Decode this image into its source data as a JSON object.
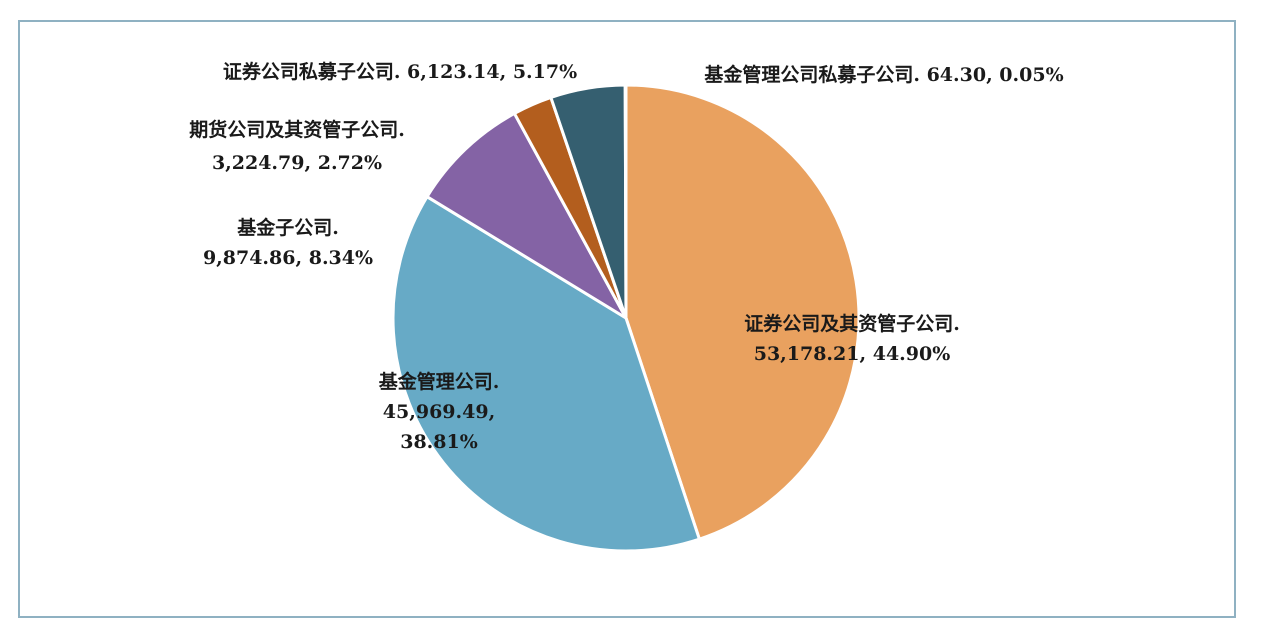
{
  "chart_data": {
    "type": "pie",
    "title": "",
    "slices": [
      {
        "name": "证券公司及其资管子公司",
        "value": 53178.21,
        "percent": 44.9,
        "value_label": "53,178.21",
        "percent_label": "44.90%",
        "color": "#E9A15F"
      },
      {
        "name": "基金管理公司",
        "value": 45969.49,
        "percent": 38.81,
        "value_label": "45,969.49",
        "percent_label": "38.81%",
        "color": "#67AAC6"
      },
      {
        "name": "基金子公司",
        "value": 9874.86,
        "percent": 8.34,
        "value_label": "9,874.86",
        "percent_label": "8.34%",
        "color": "#8463A5"
      },
      {
        "name": "期货公司及其资管子公司",
        "value": 3224.79,
        "percent": 2.72,
        "value_label": "3,224.79",
        "percent_label": "2.72%",
        "color": "#B35E1E"
      },
      {
        "name": "证券公司私募子公司",
        "value": 6123.14,
        "percent": 5.17,
        "value_label": "6,123.14",
        "percent_label": "5.17%",
        "color": "#355F70"
      },
      {
        "name": "基金管理公司私募子公司",
        "value": 64.3,
        "percent": 0.05,
        "value_label": "64.30",
        "percent_label": "0.05%",
        "color": "#8FA8B8"
      }
    ],
    "labels": [
      {
        "lines": [
          "证券公司及其资管子公司.",
          "53,178.21, 44.90%"
        ]
      },
      {
        "lines": [
          "基金管理公司.",
          "45,969.49,",
          "38.81%"
        ]
      },
      {
        "lines": [
          "基金子公司.",
          "9,874.86, 8.34%"
        ]
      },
      {
        "lines": [
          "期货公司及其资管子公司.",
          "3,224.79, 2.72%"
        ]
      },
      {
        "lines": [
          "证券公司私募子公司. 6,123.14, 5.17%"
        ]
      },
      {
        "lines": [
          "基金管理公司私募子公司. 64.30, 0.05%"
        ]
      }
    ],
    "start_angle_deg": 0,
    "direction": "clockwise"
  }
}
